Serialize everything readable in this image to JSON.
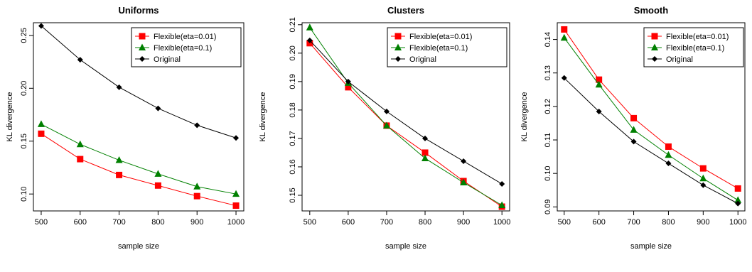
{
  "chart_data": [
    {
      "type": "line",
      "title": "Uniforms",
      "xlabel": "sample size",
      "ylabel": "KL divergence",
      "x": [
        500,
        600,
        700,
        800,
        900,
        1000
      ],
      "xticks": [
        "500",
        "600",
        "700",
        "800",
        "900",
        "1000"
      ],
      "yticks": [
        "0.10",
        "0.15",
        "0.20",
        "0.25"
      ],
      "ylim": [
        0.084,
        0.262
      ],
      "legend_position": "top-right",
      "series": [
        {
          "name": "Flexible(eta=0.01)",
          "color": "#ff0000",
          "marker": "square",
          "values": [
            0.157,
            0.133,
            0.118,
            0.108,
            0.098,
            0.089
          ]
        },
        {
          "name": "Flexible(eta=0.1)",
          "color": "#008000",
          "marker": "triangle",
          "values": [
            0.166,
            0.147,
            0.132,
            0.119,
            0.107,
            0.1
          ]
        },
        {
          "name": "Original",
          "color": "#000000",
          "marker": "diamond",
          "values": [
            0.259,
            0.227,
            0.201,
            0.181,
            0.165,
            0.153
          ]
        }
      ]
    },
    {
      "type": "line",
      "title": "Clusters",
      "xlabel": "sample size",
      "ylabel": "KL divergence",
      "x": [
        500,
        600,
        700,
        800,
        900,
        1000
      ],
      "xticks": [
        "500",
        "600",
        "700",
        "800",
        "900",
        "1000"
      ],
      "yticks": [
        "0.15",
        "0.16",
        "0.17",
        "0.18",
        "0.19",
        "0.20",
        "0.21"
      ],
      "ylim": [
        0.1445,
        0.2107
      ],
      "legend_position": "top-right",
      "series": [
        {
          "name": "Flexible(eta=0.01)",
          "color": "#ff0000",
          "marker": "square",
          "values": [
            0.2035,
            0.188,
            0.1745,
            0.165,
            0.155,
            0.146
          ]
        },
        {
          "name": "Flexible(eta=0.1)",
          "color": "#008000",
          "marker": "triangle",
          "values": [
            0.209,
            0.1895,
            0.1745,
            0.163,
            0.1545,
            0.1465
          ]
        },
        {
          "name": "Original",
          "color": "#000000",
          "marker": "diamond",
          "values": [
            0.2045,
            0.19,
            0.1795,
            0.17,
            0.162,
            0.154
          ]
        }
      ]
    },
    {
      "type": "line",
      "title": "Smooth",
      "xlabel": "sample size",
      "ylabel": "KL divergence",
      "x": [
        500,
        600,
        700,
        800,
        900,
        1000
      ],
      "xticks": [
        "500",
        "600",
        "700",
        "800",
        "900",
        "1000"
      ],
      "yticks": [
        "0.09",
        "0.10",
        "0.11",
        "0.12",
        "0.13",
        "0.14"
      ],
      "ylim": [
        0.0888,
        0.145
      ],
      "legend_position": "top-right",
      "series": [
        {
          "name": "Flexible(eta=0.01)",
          "color": "#ff0000",
          "marker": "square",
          "values": [
            0.143,
            0.128,
            0.1165,
            0.108,
            0.1015,
            0.0955
          ]
        },
        {
          "name": "Flexible(eta=0.1)",
          "color": "#008000",
          "marker": "triangle",
          "values": [
            0.1405,
            0.1265,
            0.113,
            0.1055,
            0.0985,
            0.092
          ]
        },
        {
          "name": "Original",
          "color": "#000000",
          "marker": "diamond",
          "values": [
            0.1285,
            0.1185,
            0.1095,
            0.103,
            0.0965,
            0.091
          ]
        }
      ]
    }
  ]
}
